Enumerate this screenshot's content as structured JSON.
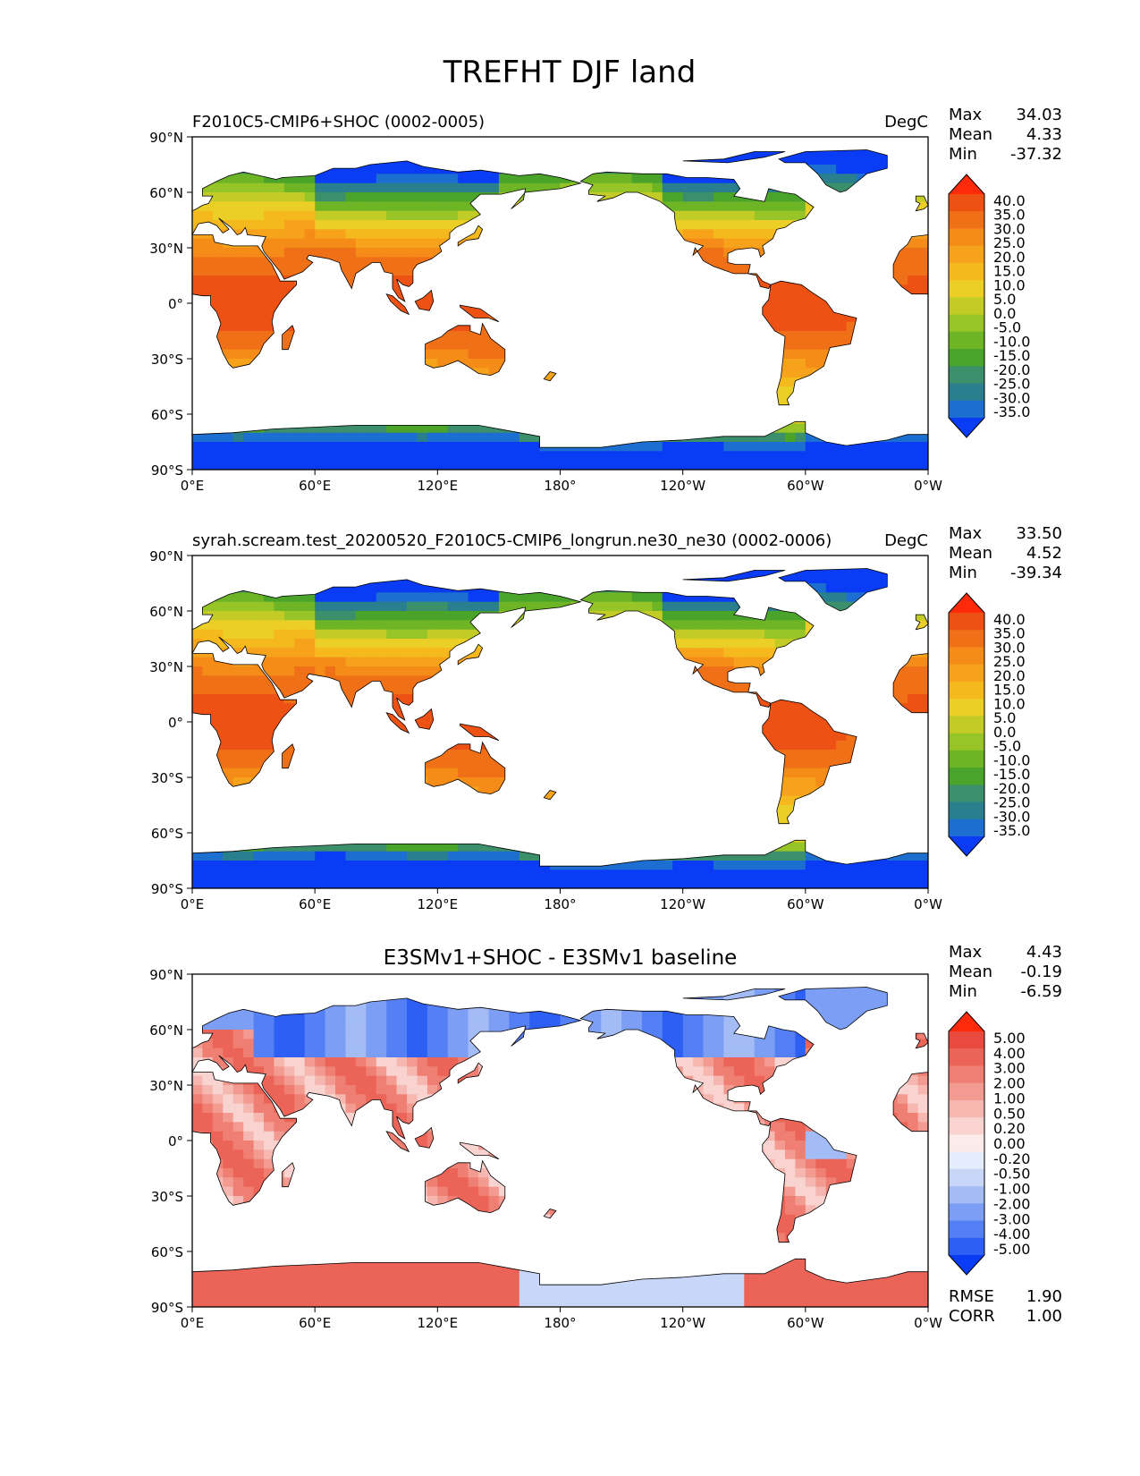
{
  "figure_title": "TREFHT DJF land",
  "colors": {
    "ocean": "#ffffff",
    "coastline": "#000000",
    "abs_scale": [
      "#0a3cf5",
      "#1c6fd0",
      "#2a7f8e",
      "#3b8f6a",
      "#4aa42a",
      "#6eb526",
      "#97c427",
      "#c3cc27",
      "#eccf26",
      "#f5b81d",
      "#f6a21a",
      "#f58c18",
      "#f07018",
      "#ee5114",
      "#ff2a0a"
    ],
    "diff_scale": [
      "#0a3cf5",
      "#2e5ff5",
      "#5580f5",
      "#7c9ff5",
      "#a3bcf5",
      "#c8d6f8",
      "#e5ecfb",
      "#fbecea",
      "#f9d3cf",
      "#f6b7b0",
      "#f39a91",
      "#f07f73",
      "#ec6458",
      "#ea4a3e",
      "#ff2a0a"
    ]
  },
  "chart_data": [
    {
      "type": "heatmap",
      "title": "F2010C5-CMIP6+SHOC (0002-0005)",
      "units": "DegC",
      "stats": [
        {
          "label": "Max",
          "value": "34.03"
        },
        {
          "label": "Mean",
          "value": "4.33"
        },
        {
          "label": "Min",
          "value": "-37.32"
        }
      ],
      "colorbar_ticks": [
        "40.0",
        "35.0",
        "30.0",
        "25.0",
        "20.0",
        "15.0",
        "10.0",
        "5.0",
        "0.0",
        "-5.0",
        "-10.0",
        "-15.0",
        "-20.0",
        "-25.0",
        "-30.0",
        "-35.0"
      ],
      "palette": "abs_scale",
      "yticks": [
        "90°N",
        "60°N",
        "30°N",
        "0°",
        "30°S",
        "60°S",
        "90°S"
      ],
      "xticks": [
        "0°E",
        "60°E",
        "120°E",
        "180°",
        "120°W",
        "60°W",
        "0°W"
      ],
      "xlim": [
        0,
        360
      ],
      "ylim": [
        -90,
        90
      ]
    },
    {
      "type": "heatmap",
      "title": "syrah.scream.test_20200520_F2010C5-CMIP6_longrun.ne30_ne30 (0002-0006)",
      "units": "DegC",
      "stats": [
        {
          "label": "Max",
          "value": "33.50"
        },
        {
          "label": "Mean",
          "value": "4.52"
        },
        {
          "label": "Min",
          "value": "-39.34"
        }
      ],
      "colorbar_ticks": [
        "40.0",
        "35.0",
        "30.0",
        "25.0",
        "20.0",
        "15.0",
        "10.0",
        "5.0",
        "0.0",
        "-5.0",
        "-10.0",
        "-15.0",
        "-20.0",
        "-25.0",
        "-30.0",
        "-35.0"
      ],
      "palette": "abs_scale",
      "yticks": [
        "90°N",
        "60°N",
        "30°N",
        "0°",
        "30°S",
        "60°S",
        "90°S"
      ],
      "xticks": [
        "0°E",
        "60°E",
        "120°E",
        "180°",
        "120°W",
        "60°W",
        "0°W"
      ],
      "xlim": [
        0,
        360
      ],
      "ylim": [
        -90,
        90
      ]
    },
    {
      "type": "heatmap",
      "title": "E3SMv1+SHOC - E3SMv1 baseline",
      "units": "",
      "stats": [
        {
          "label": "Max",
          "value": "4.43"
        },
        {
          "label": "Mean",
          "value": "-0.19"
        },
        {
          "label": "Min",
          "value": "-6.59"
        }
      ],
      "extra_stats": [
        {
          "label": "RMSE",
          "value": "1.90"
        },
        {
          "label": "CORR",
          "value": "1.00"
        }
      ],
      "colorbar_ticks": [
        "5.00",
        "4.00",
        "3.00",
        "2.00",
        "1.00",
        "0.50",
        "0.20",
        "0.00",
        "-0.20",
        "-0.50",
        "-1.00",
        "-2.00",
        "-3.00",
        "-4.00",
        "-5.00"
      ],
      "palette": "diff_scale",
      "yticks": [
        "90°N",
        "60°N",
        "30°N",
        "0°",
        "30°S",
        "60°S",
        "90°S"
      ],
      "xticks": [
        "0°E",
        "60°E",
        "120°E",
        "180°",
        "120°W",
        "60°W",
        "0°W"
      ],
      "xlim": [
        0,
        360
      ],
      "ylim": [
        -90,
        90
      ]
    }
  ]
}
